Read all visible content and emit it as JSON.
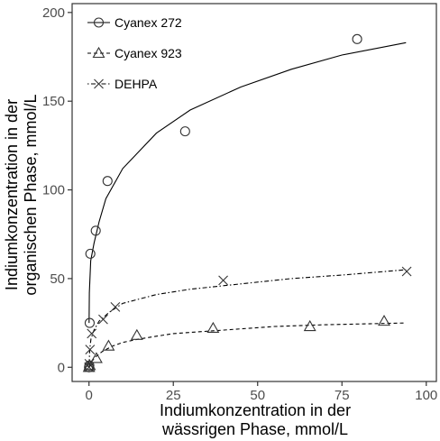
{
  "chart_data": {
    "type": "scatter",
    "xlabel": [
      "Indiumkonzentration in der",
      "wässrigen Phase, mmol/L"
    ],
    "ylabel": [
      "Indiumkonzentration in der",
      "organischen Phase, mmol/L"
    ],
    "xlim": [
      -5,
      103
    ],
    "ylim": [
      -8,
      205
    ],
    "xticks": [
      0,
      25,
      50,
      75,
      100
    ],
    "yticks": [
      0,
      50,
      100,
      150,
      200
    ],
    "grid": false,
    "legend_position": "top-left",
    "series": [
      {
        "name": "Cyanex 272",
        "marker": "circle",
        "line_style": "solid",
        "points": [
          [
            0,
            0
          ],
          [
            0.1,
            1
          ],
          [
            0.2,
            25
          ],
          [
            0.4,
            64
          ],
          [
            2,
            77
          ],
          [
            5.5,
            105
          ],
          [
            28.5,
            133
          ],
          [
            79.5,
            185
          ]
        ],
        "fit": [
          [
            0.03,
            25
          ],
          [
            0.1,
            42
          ],
          [
            0.5,
            60
          ],
          [
            1.5,
            70
          ],
          [
            3,
            82
          ],
          [
            5,
            95
          ],
          [
            10,
            112
          ],
          [
            20,
            132
          ],
          [
            30,
            145
          ],
          [
            45,
            158
          ],
          [
            60,
            168
          ],
          [
            75,
            176
          ],
          [
            94,
            183
          ]
        ]
      },
      {
        "name": "Cyanex 923",
        "marker": "triangle",
        "line_style": "dashed",
        "points": [
          [
            0,
            0
          ],
          [
            0.2,
            1
          ],
          [
            2.2,
            5
          ],
          [
            5.8,
            12
          ],
          [
            14.2,
            18
          ],
          [
            36.8,
            22
          ],
          [
            65.5,
            23
          ],
          [
            87.5,
            26
          ]
        ],
        "fit": [
          [
            0,
            0
          ],
          [
            0.3,
            2
          ],
          [
            1,
            4
          ],
          [
            2,
            6
          ],
          [
            4,
            9
          ],
          [
            7,
            12
          ],
          [
            10,
            14
          ],
          [
            15,
            16
          ],
          [
            25,
            19
          ],
          [
            40,
            21
          ],
          [
            55,
            23
          ],
          [
            70,
            24
          ],
          [
            94,
            25
          ]
        ]
      },
      {
        "name": "DEHPA",
        "marker": "x",
        "line_style": "dotdash",
        "points": [
          [
            0,
            0
          ],
          [
            0.1,
            2
          ],
          [
            0.3,
            10
          ],
          [
            0.8,
            19
          ],
          [
            4.2,
            27
          ],
          [
            7.8,
            34
          ],
          [
            39.8,
            49
          ],
          [
            94.2,
            54
          ]
        ],
        "fit": [
          [
            0,
            0
          ],
          [
            0.2,
            10
          ],
          [
            0.6,
            16
          ],
          [
            1.5,
            21
          ],
          [
            3,
            26
          ],
          [
            6,
            31
          ],
          [
            10,
            36
          ],
          [
            20,
            41
          ],
          [
            30,
            44
          ],
          [
            45,
            47
          ],
          [
            60,
            50
          ],
          [
            75,
            52
          ],
          [
            94,
            55
          ]
        ]
      }
    ]
  }
}
